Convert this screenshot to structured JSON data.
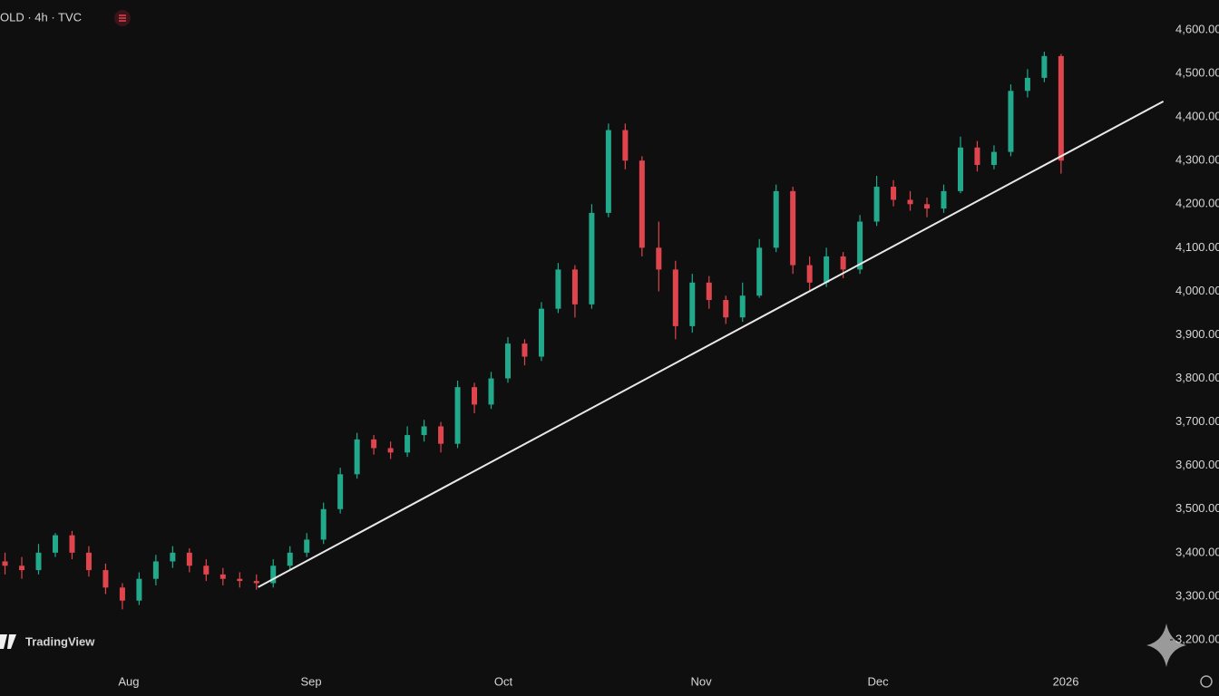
{
  "chart_data": {
    "type": "candlestick",
    "title": "OLD · 4h · TVC",
    "brand": "TradingView",
    "up_color": "#22a88a",
    "down_color": "#e0454e",
    "x": [
      0,
      1,
      2,
      3,
      4,
      5,
      6,
      7,
      8,
      9,
      10,
      11,
      12,
      13,
      14,
      15,
      16,
      17,
      18,
      19,
      20,
      21,
      22,
      23,
      24,
      25,
      26,
      27,
      28,
      29,
      30,
      31,
      32,
      33,
      34,
      35,
      36,
      37,
      38,
      39,
      40,
      41,
      42,
      43,
      44,
      45,
      46,
      47,
      48,
      49,
      50,
      51,
      52,
      53,
      54,
      55,
      56,
      57,
      58,
      59,
      60,
      61,
      62,
      63
    ],
    "open": [
      3380,
      3370,
      3360,
      3400,
      3440,
      3400,
      3360,
      3320,
      3290,
      3340,
      3380,
      3400,
      3370,
      3350,
      3340,
      3335,
      3330,
      3370,
      3400,
      3430,
      3500,
      3580,
      3660,
      3640,
      3630,
      3670,
      3690,
      3650,
      3780,
      3740,
      3800,
      3880,
      3850,
      3960,
      4050,
      3970,
      4180,
      4370,
      4300,
      4100,
      4050,
      3920,
      4020,
      3980,
      3940,
      3990,
      4100,
      4230,
      4060,
      4020,
      4080,
      4050,
      4160,
      4240,
      4210,
      4200,
      4190,
      4230,
      4330,
      4290,
      4320,
      4460,
      4490,
      4540
    ],
    "high": [
      3400,
      3390,
      3420,
      3445,
      3450,
      3415,
      3375,
      3330,
      3355,
      3395,
      3415,
      3410,
      3385,
      3365,
      3355,
      3350,
      3385,
      3415,
      3445,
      3515,
      3595,
      3675,
      3670,
      3655,
      3690,
      3705,
      3700,
      3795,
      3790,
      3815,
      3895,
      3890,
      3975,
      4065,
      4060,
      4200,
      4385,
      4385,
      4310,
      4160,
      4070,
      4040,
      4035,
      3990,
      4020,
      4120,
      4245,
      4240,
      4080,
      4100,
      4090,
      4175,
      4265,
      4255,
      4230,
      4215,
      4245,
      4355,
      4345,
      4335,
      4475,
      4510,
      4550,
      4545
    ],
    "low": [
      3350,
      3340,
      3350,
      3390,
      3385,
      3345,
      3305,
      3270,
      3280,
      3325,
      3365,
      3355,
      3335,
      3325,
      3320,
      3315,
      3320,
      3360,
      3390,
      3420,
      3490,
      3570,
      3625,
      3615,
      3620,
      3655,
      3630,
      3640,
      3720,
      3730,
      3790,
      3830,
      3840,
      3950,
      3940,
      3960,
      4170,
      4280,
      4080,
      4000,
      3890,
      3905,
      3960,
      3925,
      3930,
      3985,
      4090,
      4040,
      4000,
      4010,
      4030,
      4040,
      4150,
      4195,
      4185,
      4170,
      4180,
      4225,
      4275,
      4280,
      4310,
      4445,
      4480,
      4270
    ],
    "close": [
      3370,
      3360,
      3400,
      3440,
      3400,
      3360,
      3320,
      3290,
      3340,
      3380,
      3400,
      3370,
      3350,
      3340,
      3335,
      3330,
      3370,
      3400,
      3430,
      3500,
      3580,
      3660,
      3640,
      3630,
      3670,
      3690,
      3650,
      3780,
      3740,
      3800,
      3880,
      3850,
      3960,
      4050,
      3970,
      4180,
      4370,
      4300,
      4100,
      4050,
      3920,
      4020,
      3980,
      3940,
      3990,
      4100,
      4230,
      4060,
      4020,
      4080,
      4050,
      4160,
      4240,
      4210,
      4200,
      4190,
      4230,
      4330,
      4290,
      4320,
      4460,
      4490,
      4540,
      4300
    ],
    "trendline": {
      "x": [
        15.1,
        69.1
      ],
      "y": [
        3321,
        4436
      ],
      "color": "#e8e8e8"
    },
    "xlim": [
      -0.3,
      69.5
    ],
    "xticks": [
      {
        "value": 7.38,
        "label": "Aug"
      },
      {
        "value": 18.26,
        "label": "Sep"
      },
      {
        "value": 29.73,
        "label": "Oct"
      },
      {
        "value": 41.53,
        "label": "Nov"
      },
      {
        "value": 52.08,
        "label": "Dec"
      },
      {
        "value": 63.28,
        "label": "2026"
      }
    ],
    "ylim": [
      3200,
      4600
    ],
    "yticks": [
      {
        "value": 3200,
        "label": "3,200.00"
      },
      {
        "value": 3300,
        "label": "3,300.00"
      },
      {
        "value": 3400,
        "label": "3,400.00"
      },
      {
        "value": 3500,
        "label": "3,500.00"
      },
      {
        "value": 3600,
        "label": "3,600.00"
      },
      {
        "value": 3700,
        "label": "3,700.00"
      },
      {
        "value": 3800,
        "label": "3,800.00"
      },
      {
        "value": 3900,
        "label": "3,900.00"
      },
      {
        "value": 4000,
        "label": "4,000.00"
      },
      {
        "value": 4100,
        "label": "4,100.00"
      },
      {
        "value": 4200,
        "label": "4,200.00"
      },
      {
        "value": 4300,
        "label": "4,300.00"
      },
      {
        "value": 4400,
        "label": "4,400.00"
      },
      {
        "value": 4500,
        "label": "4,500.00"
      },
      {
        "value": 4600,
        "label": "4,600.00"
      }
    ]
  }
}
